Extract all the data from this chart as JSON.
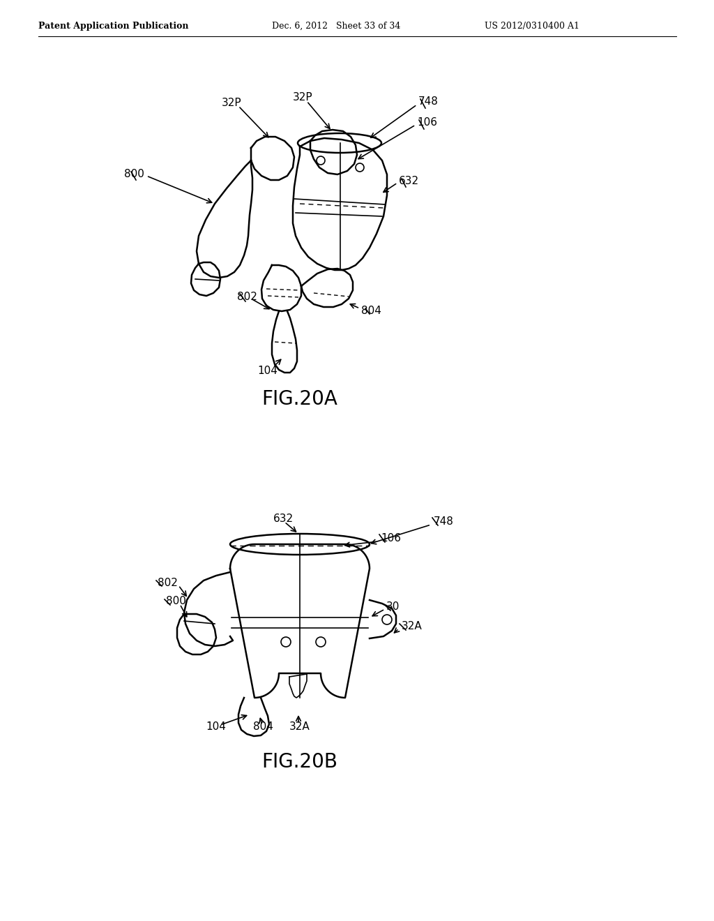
{
  "background_color": "#ffffff",
  "header_left": "Patent Application Publication",
  "header_mid": "Dec. 6, 2012   Sheet 33 of 34",
  "header_right": "US 2012/0310400 A1",
  "fig_label_a": "FIG.20A",
  "fig_label_b": "FIG.20B"
}
